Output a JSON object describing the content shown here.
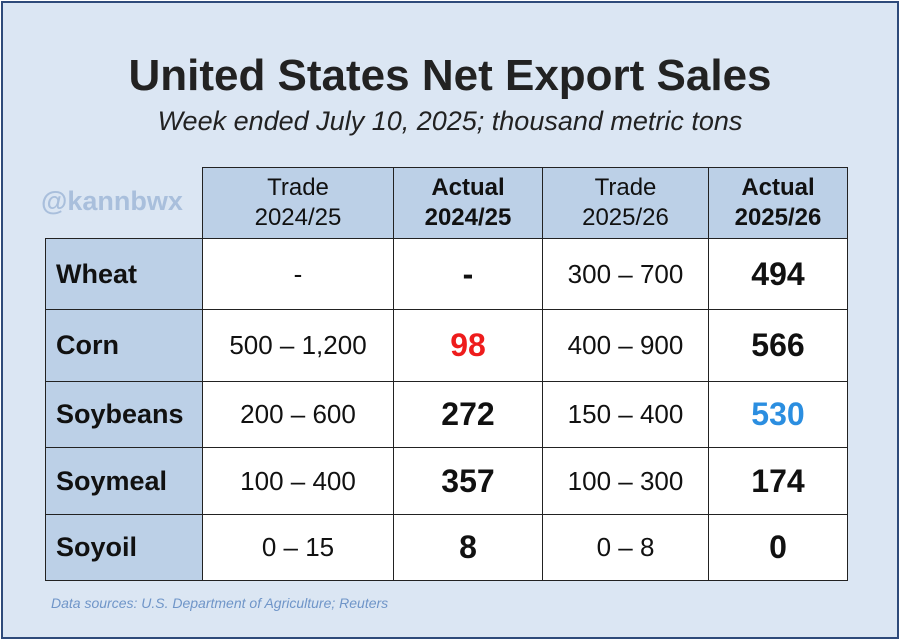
{
  "title": "United States Net Export Sales",
  "subtitle": "Week ended July 10, 2025; thousand metric tons",
  "handle": "@kannbwx",
  "source": "Data sources: U.S. Department of Agriculture; Reuters",
  "columns": [
    {
      "line1": "Trade",
      "line2": "2024/25"
    },
    {
      "line1": "Actual",
      "line2": "2024/25"
    },
    {
      "line1": "Trade",
      "line2": "2025/26"
    },
    {
      "line1": "Actual",
      "line2": "2025/26"
    }
  ],
  "rows": [
    {
      "label": "Wheat",
      "trade_2425": "-",
      "actual_2425": "-",
      "trade_2526": "300 – 700",
      "actual_2526": "494"
    },
    {
      "label": "Corn",
      "trade_2425": "500 – 1,200",
      "actual_2425": "98",
      "trade_2526": "400 – 900",
      "actual_2526": "566"
    },
    {
      "label": "Soybeans",
      "trade_2425": "200 – 600",
      "actual_2425": "272",
      "trade_2526": "150 – 400",
      "actual_2526": "530"
    },
    {
      "label": "Soymeal",
      "trade_2425": "100 – 400",
      "actual_2425": "357",
      "trade_2526": "100 – 300",
      "actual_2526": "174"
    },
    {
      "label": "Soyoil",
      "trade_2425": "0 – 15",
      "actual_2425": "8",
      "trade_2526": "0 – 8",
      "actual_2526": "0"
    }
  ],
  "colors": {
    "below_range": "#ee1c1c",
    "above_range": "#2b8ee0",
    "header_fill": "#bcd0e7",
    "background": "#dbe6f3"
  }
}
